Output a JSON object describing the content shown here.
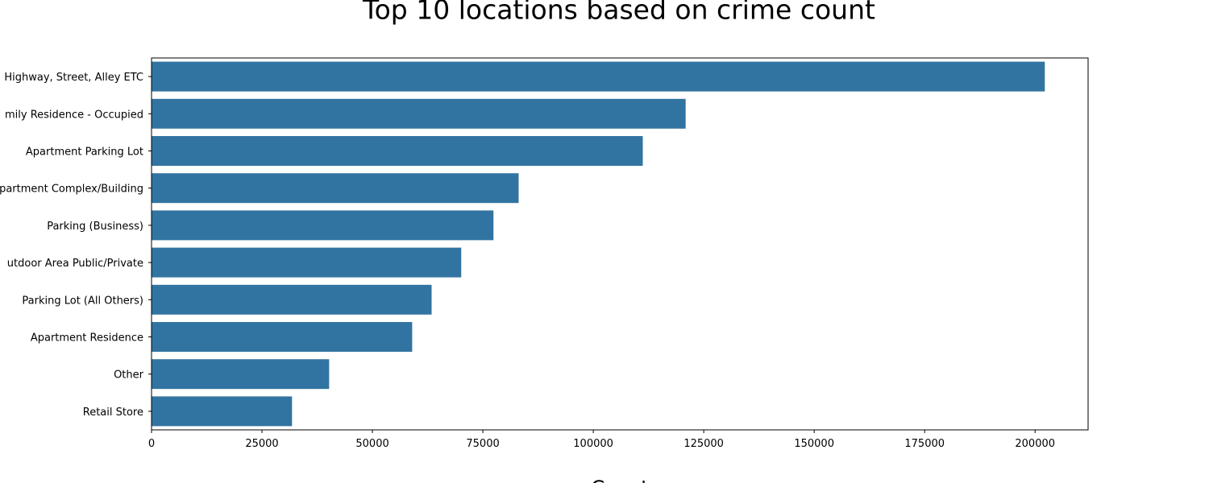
{
  "chart_data": {
    "type": "barh",
    "title": "Top 10 locations based on crime count",
    "xlabel": "Count",
    "categories": [
      "Highway, Street, Alley ETC",
      "mily Residence - Occupied",
      "Apartment Parking Lot",
      "partment Complex/Building",
      "Parking (Business)",
      "utdoor Area Public/Private",
      "Parking Lot (All Others)",
      "Apartment Residence",
      "Other",
      "Retail Store"
    ],
    "values": [
      202200,
      120900,
      111200,
      83100,
      77400,
      70100,
      63400,
      59000,
      40200,
      31800
    ],
    "color": "#3274a1",
    "xlim": [
      0,
      212000
    ],
    "xticks": [
      0,
      25000,
      50000,
      75000,
      100000,
      125000,
      150000,
      175000,
      200000
    ]
  }
}
